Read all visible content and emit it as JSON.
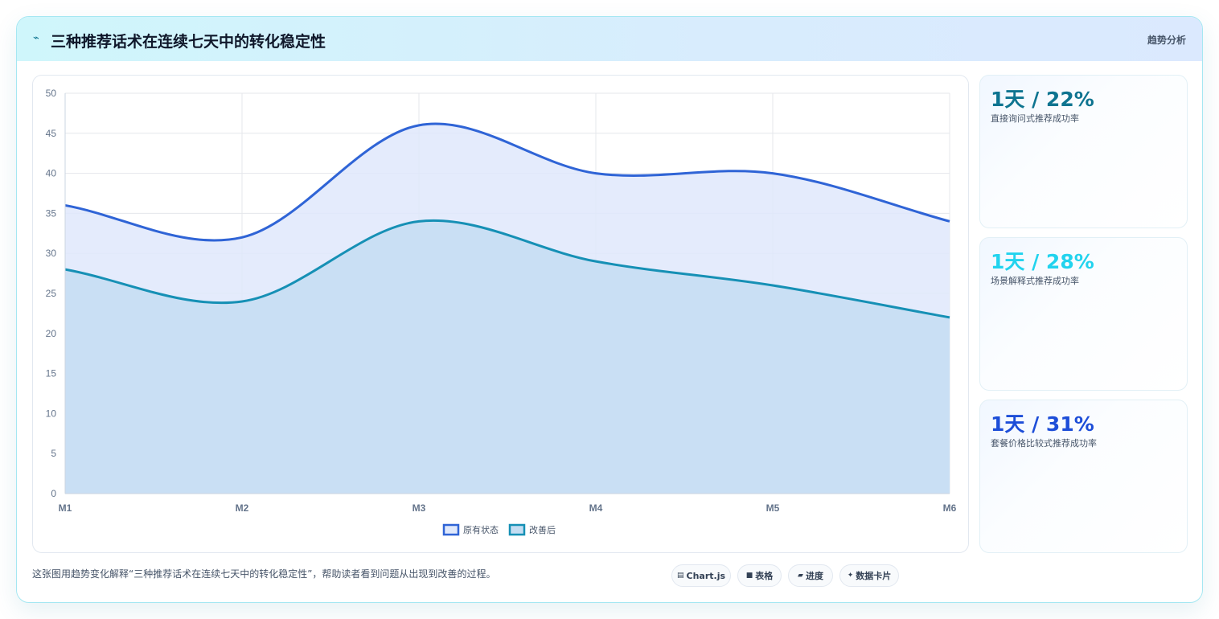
{
  "header": {
    "title": "三种推荐话术在连续七天中的转化稳定性",
    "tag": "趋势分析"
  },
  "stats": [
    {
      "value": "1天 / 22%",
      "label": "直接询问式推荐成功率",
      "color": "#0e7490"
    },
    {
      "value": "1天 / 28%",
      "label": "场景解释式推荐成功率",
      "color": "#22d3ee"
    },
    {
      "value": "1天 / 31%",
      "label": "套餐价格比较式推荐成功率",
      "color": "#1d4ed8"
    }
  ],
  "footer": {
    "description": "这张图用趋势变化解释“三种推荐话术在连续七天中的转化稳定性”，帮助读者看到问题从出现到改善的过程。",
    "pills": [
      {
        "icon": "▤",
        "icon_name": "chart-icon",
        "label": "Chart.js"
      },
      {
        "icon": "■",
        "icon_name": "table-icon",
        "label": "表格"
      },
      {
        "icon": "▰",
        "icon_name": "progress-icon",
        "label": "进度"
      },
      {
        "icon": "✦",
        "icon_name": "card-icon",
        "label": "数据卡片"
      }
    ]
  },
  "chart_data": {
    "type": "area",
    "categories": [
      "M1",
      "M2",
      "M3",
      "M4",
      "M5",
      "M6"
    ],
    "series": [
      {
        "name": "原有状态",
        "values": [
          36,
          32,
          46,
          40,
          40,
          34
        ],
        "color": "#2f64d6",
        "fill": "#dfe8fb"
      },
      {
        "name": "改善后",
        "values": [
          28,
          24,
          34,
          29,
          26,
          22
        ],
        "color": "#1690b5",
        "fill": "#c4ddf2"
      }
    ],
    "ylim": [
      0,
      50
    ],
    "yticks": [
      0,
      5,
      10,
      15,
      20,
      25,
      30,
      35,
      40,
      45,
      50
    ],
    "grid": true,
    "legend": "bottom"
  }
}
